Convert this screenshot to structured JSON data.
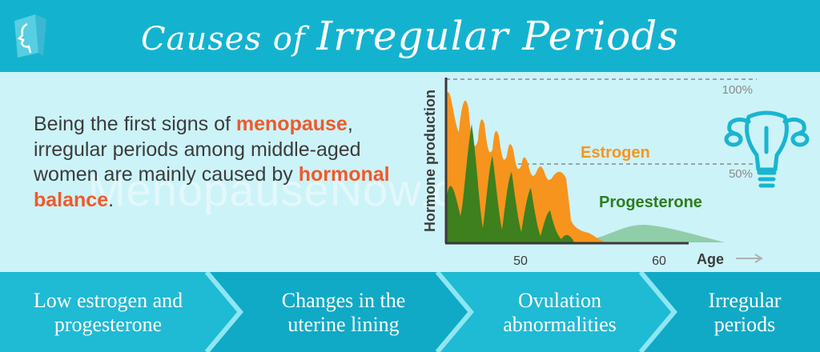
{
  "header": {
    "title_part1": "Causes",
    "title_part2": " of ",
    "title_part3": "Irregular Periods",
    "bg_color": "#13b3cf"
  },
  "description": {
    "text1": "Being the first signs of ",
    "highlight1": "menopause",
    "text2": ", irregular periods among middle-aged women are mainly caused by ",
    "highlight2": "hormonal balance",
    "text3": "."
  },
  "watermark": "MenopauseNow.com",
  "logo_icon": "face-profile-logo-icon",
  "uterus_icon": "uterus-icon",
  "chart_data": {
    "type": "area",
    "ylabel": "Hormone production",
    "xlabel": "Age",
    "x_ticks": [
      "50",
      "60"
    ],
    "reference_lines": [
      "100%",
      "50%"
    ],
    "series": [
      {
        "name": "Estrogen",
        "color": "#f7941d"
      },
      {
        "name": "Progesterone",
        "color": "#2e7d1e"
      }
    ]
  },
  "steps": [
    {
      "line1": "Low estrogen and",
      "line2": "progesterone"
    },
    {
      "line1": "Changes in the",
      "line2": "uterine lining"
    },
    {
      "line1": "Ovulation",
      "line2": "abnormalities"
    },
    {
      "line1": "Irregular",
      "line2": "periods"
    }
  ],
  "colors": {
    "accent": "#f1592a",
    "background": "#ccf3f8",
    "estrogen": "#f7941d",
    "progesterone": "#2e7d1e"
  }
}
